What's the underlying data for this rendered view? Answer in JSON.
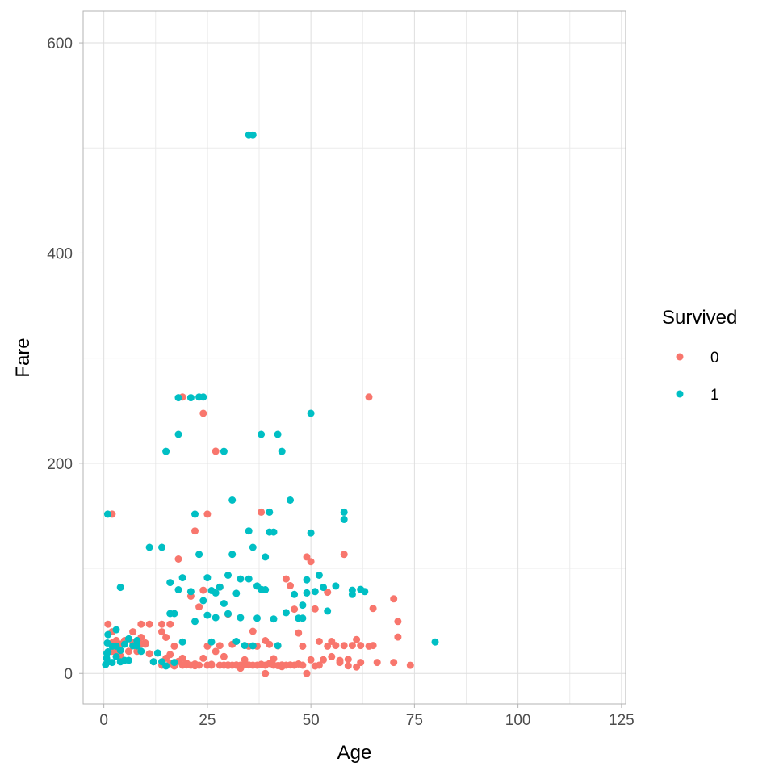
{
  "chart_data": {
    "type": "scatter",
    "xlabel": "Age",
    "ylabel": "Fare",
    "xlim": [
      -5,
      126
    ],
    "ylim": [
      -29,
      630
    ],
    "xticks": [
      0,
      25,
      50,
      75,
      100,
      125
    ],
    "yticks": [
      0,
      200,
      400,
      600
    ],
    "grid": true,
    "legend": {
      "title": "Survived",
      "placement": "right"
    },
    "series": [
      {
        "name": "0",
        "color": "#F8766D",
        "points": [
          [
            1,
            46.9
          ],
          [
            2,
            39.7
          ],
          [
            2,
            29.1
          ],
          [
            2,
            21.1
          ],
          [
            2,
            151.6
          ],
          [
            3,
            31.4
          ],
          [
            3,
            21.1
          ],
          [
            4,
            27.9
          ],
          [
            4,
            16.7
          ],
          [
            5,
            31.3
          ],
          [
            6,
            21.1
          ],
          [
            7,
            29.1
          ],
          [
            7,
            39.7
          ],
          [
            8,
            21.1
          ],
          [
            8,
            29.1
          ],
          [
            9,
            27.9
          ],
          [
            9,
            34.4
          ],
          [
            9,
            46.9
          ],
          [
            10,
            29.1
          ],
          [
            10,
            27.9
          ],
          [
            11,
            46.9
          ],
          [
            11,
            18.8
          ],
          [
            12,
            11.2
          ],
          [
            14,
            39.7
          ],
          [
            14,
            46.9
          ],
          [
            14,
            7.9
          ],
          [
            15,
            14.5
          ],
          [
            15,
            34.4
          ],
          [
            16,
            46.9
          ],
          [
            16,
            9.5
          ],
          [
            16,
            18
          ],
          [
            17,
            7.1
          ],
          [
            17,
            26
          ],
          [
            18,
            11.5
          ],
          [
            18,
            108.9
          ],
          [
            19,
            263
          ],
          [
            19,
            7.9
          ],
          [
            19,
            14.5
          ],
          [
            20,
            8.1
          ],
          [
            20,
            9.8
          ],
          [
            21,
            7.9
          ],
          [
            21,
            73.5
          ],
          [
            22,
            7.3
          ],
          [
            22,
            135.6
          ],
          [
            22,
            9
          ],
          [
            23,
            7.9
          ],
          [
            23,
            63.4
          ],
          [
            24,
            247.5
          ],
          [
            24,
            14.5
          ],
          [
            24,
            79.2
          ],
          [
            25,
            7.9
          ],
          [
            25,
            151.6
          ],
          [
            25,
            26
          ],
          [
            26,
            7.9
          ],
          [
            26,
            8.7
          ],
          [
            27,
            211.5
          ],
          [
            27,
            21
          ],
          [
            28,
            7.9
          ],
          [
            28,
            82.2
          ],
          [
            28,
            26.5
          ],
          [
            29,
            7.9
          ],
          [
            29,
            16.1
          ],
          [
            30,
            8.1
          ],
          [
            30,
            7.6
          ],
          [
            30,
            56.5
          ],
          [
            31,
            7.9
          ],
          [
            31,
            27.7
          ],
          [
            32,
            8.1
          ],
          [
            32,
            7.9
          ],
          [
            33,
            7.9
          ],
          [
            33,
            5
          ],
          [
            34,
            8.1
          ],
          [
            34,
            13
          ],
          [
            35,
            8.1
          ],
          [
            35,
            26
          ],
          [
            36,
            7.9
          ],
          [
            36,
            40.1
          ],
          [
            37,
            7.9
          ],
          [
            37,
            26
          ],
          [
            38,
            8.7
          ],
          [
            38,
            153.5
          ],
          [
            39,
            0
          ],
          [
            39,
            7.9
          ],
          [
            39,
            31.3
          ],
          [
            40,
            9.5
          ],
          [
            40,
            27.7
          ],
          [
            41,
            7.9
          ],
          [
            41,
            14.1
          ],
          [
            42,
            7.5
          ],
          [
            42,
            26.3
          ],
          [
            43,
            8.1
          ],
          [
            43,
            6.5
          ],
          [
            44,
            7.9
          ],
          [
            44,
            90
          ],
          [
            45,
            8.1
          ],
          [
            45,
            83.5
          ],
          [
            46,
            7.9
          ],
          [
            46,
            61.2
          ],
          [
            47,
            9
          ],
          [
            47,
            38.5
          ],
          [
            48,
            7.9
          ],
          [
            48,
            25.9
          ],
          [
            49,
            110.9
          ],
          [
            49,
            0
          ],
          [
            50,
            106.4
          ],
          [
            50,
            13
          ],
          [
            51,
            7.1
          ],
          [
            51,
            61.4
          ],
          [
            52,
            7.9
          ],
          [
            52,
            30.5
          ],
          [
            53,
            13
          ],
          [
            54,
            26
          ],
          [
            54,
            77.3
          ],
          [
            55,
            16
          ],
          [
            55,
            30.5
          ],
          [
            56,
            26.6
          ],
          [
            57,
            10.5
          ],
          [
            57,
            12.4
          ],
          [
            58,
            113.3
          ],
          [
            58,
            26.5
          ],
          [
            59,
            7.3
          ],
          [
            59,
            13.5
          ],
          [
            60,
            26.6
          ],
          [
            61,
            32.3
          ],
          [
            61,
            6.2
          ],
          [
            62,
            26.6
          ],
          [
            62,
            10.5
          ],
          [
            64,
            263
          ],
          [
            64,
            26
          ],
          [
            65,
            61.9
          ],
          [
            65,
            26.6
          ],
          [
            66,
            10.5
          ],
          [
            70,
            71
          ],
          [
            70,
            10.5
          ],
          [
            71,
            34.7
          ],
          [
            71,
            49.5
          ],
          [
            74,
            7.8
          ]
        ]
      },
      {
        "name": "1",
        "color": "#00BFC4",
        "points": [
          [
            0.42,
            8.5
          ],
          [
            0.67,
            14.5
          ],
          [
            0.75,
            19.3
          ],
          [
            0.83,
            29
          ],
          [
            0.92,
            151.6
          ],
          [
            1,
            11.1
          ],
          [
            1,
            37
          ],
          [
            1,
            20.6
          ],
          [
            2,
            26
          ],
          [
            2,
            10.5
          ],
          [
            3,
            41.6
          ],
          [
            3,
            15.9
          ],
          [
            3,
            26
          ],
          [
            4,
            81.9
          ],
          [
            4,
            22
          ],
          [
            4,
            11.1
          ],
          [
            5,
            27.8
          ],
          [
            5,
            12.5
          ],
          [
            6,
            33
          ],
          [
            6,
            12.5
          ],
          [
            7,
            26.3
          ],
          [
            8,
            26.2
          ],
          [
            8,
            31.4
          ],
          [
            9,
            21.1
          ],
          [
            11,
            120
          ],
          [
            12,
            11.2
          ],
          [
            13,
            19.5
          ],
          [
            14,
            120
          ],
          [
            14,
            11.2
          ],
          [
            15,
            211.3
          ],
          [
            15,
            7.2
          ],
          [
            16,
            57
          ],
          [
            16,
            86.5
          ],
          [
            17,
            57
          ],
          [
            17,
            10.5
          ],
          [
            18,
            262.4
          ],
          [
            18,
            227.5
          ],
          [
            18,
            79.7
          ],
          [
            19,
            91.1
          ],
          [
            19,
            30
          ],
          [
            21,
            262.4
          ],
          [
            21,
            77.9
          ],
          [
            22,
            151.6
          ],
          [
            22,
            49.5
          ],
          [
            23,
            263
          ],
          [
            23,
            113.3
          ],
          [
            24,
            263
          ],
          [
            24,
            69.3
          ],
          [
            25,
            91.1
          ],
          [
            25,
            55.4
          ],
          [
            26,
            78.9
          ],
          [
            26,
            30
          ],
          [
            27,
            76.7
          ],
          [
            27,
            53.1
          ],
          [
            28,
            82.2
          ],
          [
            29,
            211.3
          ],
          [
            29,
            66.6
          ],
          [
            30,
            93.5
          ],
          [
            30,
            56.9
          ],
          [
            31,
            164.9
          ],
          [
            31,
            113.3
          ],
          [
            32,
            76.3
          ],
          [
            32,
            30.5
          ],
          [
            33,
            90
          ],
          [
            33,
            53.1
          ],
          [
            34,
            26.6
          ],
          [
            35,
            512.3
          ],
          [
            35,
            135.6
          ],
          [
            35,
            90
          ],
          [
            36,
            512.3
          ],
          [
            36,
            120
          ],
          [
            36,
            26.3
          ],
          [
            37,
            83.2
          ],
          [
            37,
            52.6
          ],
          [
            38,
            227.5
          ],
          [
            38,
            80
          ],
          [
            39,
            79.7
          ],
          [
            39,
            110.9
          ],
          [
            40,
            153.5
          ],
          [
            40,
            134.5
          ],
          [
            41,
            134.5
          ],
          [
            41,
            51.9
          ],
          [
            42,
            227.5
          ],
          [
            42,
            26.5
          ],
          [
            43,
            211.3
          ],
          [
            44,
            57.9
          ],
          [
            45,
            164.9
          ],
          [
            46,
            75.2
          ],
          [
            47,
            52.6
          ],
          [
            48,
            52.6
          ],
          [
            48,
            65
          ],
          [
            49,
            89.1
          ],
          [
            49,
            76.7
          ],
          [
            50,
            247.5
          ],
          [
            50,
            133.7
          ],
          [
            51,
            77.9
          ],
          [
            52,
            93.5
          ],
          [
            53,
            81.9
          ],
          [
            54,
            59.4
          ],
          [
            56,
            83.2
          ],
          [
            58,
            153.5
          ],
          [
            58,
            146.5
          ],
          [
            60,
            75.2
          ],
          [
            60,
            79.2
          ],
          [
            62,
            80
          ],
          [
            63,
            77.9
          ],
          [
            80,
            30
          ]
        ]
      }
    ]
  }
}
